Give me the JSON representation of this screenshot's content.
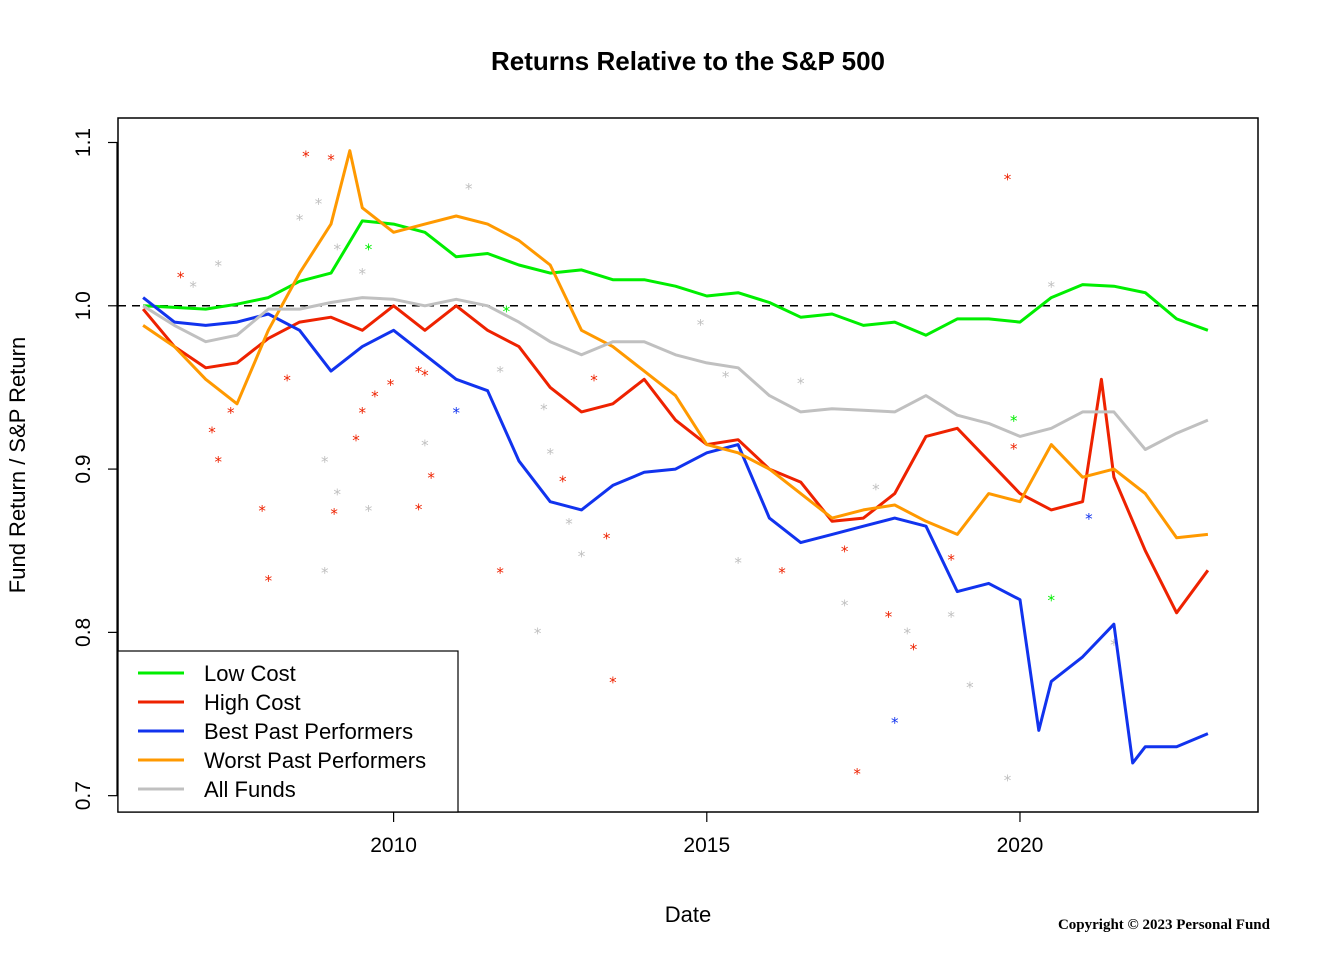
{
  "chart_data": {
    "type": "line",
    "title": "Returns Relative to the S&P 500",
    "xlabel": "Date",
    "ylabel": "Fund Return / S&P Return",
    "xlim": [
      2005.6,
      2023.8
    ],
    "ylim": [
      0.69,
      1.115
    ],
    "x_ticks": [
      {
        "value": 2010,
        "label": "2010"
      },
      {
        "value": 2015,
        "label": "2015"
      },
      {
        "value": 2020,
        "label": "2020"
      }
    ],
    "y_ticks": [
      {
        "value": 0.7,
        "label": "0.7"
      },
      {
        "value": 0.8,
        "label": "0.8"
      },
      {
        "value": 0.9,
        "label": "0.9"
      },
      {
        "value": 1.0,
        "label": "1.0"
      },
      {
        "value": 1.1,
        "label": "1.1"
      }
    ],
    "reference_line": {
      "y": 1.0,
      "style": "dashed"
    },
    "grid": false,
    "legend_position": "bottom-left",
    "series": [
      {
        "name": "Low Cost",
        "color": "#00ee00",
        "x": [
          2006.0,
          2006.5,
          2007.0,
          2007.5,
          2008.0,
          2008.5,
          2009.0,
          2009.5,
          2010.0,
          2010.5,
          2011.0,
          2011.5,
          2012.0,
          2012.5,
          2013.0,
          2013.5,
          2014.0,
          2014.5,
          2015.0,
          2015.5,
          2016.0,
          2016.5,
          2017.0,
          2017.5,
          2018.0,
          2018.5,
          2019.0,
          2019.5,
          2020.0,
          2020.5,
          2021.0,
          2021.5,
          2022.0,
          2022.5,
          2023.0
        ],
        "y": [
          1.0,
          0.999,
          0.998,
          1.001,
          1.005,
          1.015,
          1.02,
          1.052,
          1.05,
          1.045,
          1.03,
          1.032,
          1.025,
          1.02,
          1.022,
          1.016,
          1.016,
          1.012,
          1.006,
          1.008,
          1.002,
          0.993,
          0.995,
          0.988,
          0.99,
          0.982,
          0.992,
          0.992,
          0.99,
          1.005,
          1.013,
          1.012,
          1.008,
          0.992,
          0.985
        ]
      },
      {
        "name": "High Cost",
        "color": "#ee2200",
        "x": [
          2006.0,
          2006.5,
          2007.0,
          2007.5,
          2008.0,
          2008.5,
          2009.0,
          2009.5,
          2010.0,
          2010.5,
          2011.0,
          2011.5,
          2012.0,
          2012.5,
          2013.0,
          2013.5,
          2014.0,
          2014.5,
          2015.0,
          2015.5,
          2016.0,
          2016.5,
          2017.0,
          2017.5,
          2018.0,
          2018.5,
          2019.0,
          2019.5,
          2020.0,
          2020.5,
          2021.0,
          2021.3,
          2021.5,
          2022.0,
          2022.5,
          2023.0
        ],
        "y": [
          0.998,
          0.975,
          0.962,
          0.965,
          0.98,
          0.99,
          0.993,
          0.985,
          1.0,
          0.985,
          1.0,
          0.985,
          0.975,
          0.95,
          0.935,
          0.94,
          0.955,
          0.93,
          0.915,
          0.918,
          0.9,
          0.892,
          0.868,
          0.87,
          0.885,
          0.92,
          0.925,
          0.905,
          0.885,
          0.875,
          0.88,
          0.955,
          0.895,
          0.85,
          0.812,
          0.838
        ]
      },
      {
        "name": "Best Past Performers",
        "color": "#1133ee",
        "x": [
          2006.0,
          2006.5,
          2007.0,
          2007.5,
          2008.0,
          2008.5,
          2009.0,
          2009.5,
          2010.0,
          2010.5,
          2011.0,
          2011.5,
          2012.0,
          2012.5,
          2013.0,
          2013.5,
          2014.0,
          2014.5,
          2015.0,
          2015.5,
          2016.0,
          2016.5,
          2017.0,
          2017.5,
          2018.0,
          2018.5,
          2019.0,
          2019.5,
          2020.0,
          2020.3,
          2020.5,
          2021.0,
          2021.5,
          2021.8,
          2022.0,
          2022.5,
          2023.0
        ],
        "y": [
          1.005,
          0.99,
          0.988,
          0.99,
          0.995,
          0.985,
          0.96,
          0.975,
          0.985,
          0.97,
          0.955,
          0.948,
          0.905,
          0.88,
          0.875,
          0.89,
          0.898,
          0.9,
          0.91,
          0.915,
          0.87,
          0.855,
          0.86,
          0.865,
          0.87,
          0.865,
          0.825,
          0.83,
          0.82,
          0.74,
          0.77,
          0.785,
          0.805,
          0.72,
          0.73,
          0.73,
          0.738
        ]
      },
      {
        "name": "Worst Past Performers",
        "color": "#ff9900",
        "x": [
          2006.0,
          2006.5,
          2007.0,
          2007.5,
          2008.0,
          2008.5,
          2009.0,
          2009.3,
          2009.5,
          2010.0,
          2010.5,
          2011.0,
          2011.5,
          2012.0,
          2012.5,
          2013.0,
          2013.5,
          2014.0,
          2014.5,
          2015.0,
          2015.5,
          2016.0,
          2016.5,
          2017.0,
          2017.5,
          2018.0,
          2018.5,
          2019.0,
          2019.5,
          2020.0,
          2020.5,
          2021.0,
          2021.5,
          2022.0,
          2022.5,
          2023.0
        ],
        "y": [
          0.988,
          0.975,
          0.955,
          0.94,
          0.985,
          1.02,
          1.05,
          1.095,
          1.06,
          1.045,
          1.05,
          1.055,
          1.05,
          1.04,
          1.025,
          0.985,
          0.975,
          0.96,
          0.945,
          0.915,
          0.91,
          0.9,
          0.885,
          0.87,
          0.875,
          0.878,
          0.868,
          0.86,
          0.885,
          0.88,
          0.915,
          0.895,
          0.9,
          0.885,
          0.858,
          0.86
        ]
      },
      {
        "name": "All Funds",
        "color": "#c0c0c0",
        "x": [
          2006.0,
          2006.5,
          2007.0,
          2007.5,
          2008.0,
          2008.5,
          2009.0,
          2009.5,
          2010.0,
          2010.5,
          2011.0,
          2011.5,
          2012.0,
          2012.5,
          2013.0,
          2013.5,
          2014.0,
          2014.5,
          2015.0,
          2015.5,
          2016.0,
          2016.5,
          2017.0,
          2017.5,
          2018.0,
          2018.5,
          2019.0,
          2019.5,
          2020.0,
          2020.5,
          2021.0,
          2021.5,
          2022.0,
          2022.5,
          2023.0
        ],
        "y": [
          1.0,
          0.988,
          0.978,
          0.982,
          0.998,
          0.998,
          1.002,
          1.005,
          1.004,
          1.0,
          1.004,
          1.0,
          0.99,
          0.978,
          0.97,
          0.978,
          0.978,
          0.97,
          0.965,
          0.962,
          0.945,
          0.935,
          0.937,
          0.936,
          0.935,
          0.945,
          0.933,
          0.928,
          0.92,
          0.925,
          0.935,
          0.935,
          0.912,
          0.922,
          0.93
        ]
      }
    ],
    "scatter_points": [
      {
        "series": "High Cost",
        "x": [
          2008.6,
          2009.0,
          2008.3,
          2006.6,
          2007.9,
          2007.4,
          2007.1,
          2007.2,
          2008.0,
          2009.5,
          2009.7,
          2009.95,
          2010.4,
          2010.6,
          2010.4,
          2010.5,
          2009.05,
          2009.4,
          2011.7,
          2012.7,
          2013.5,
          2013.4,
          2013.2,
          2017.4,
          2017.9,
          2018.3,
          2019.8,
          2016.2,
          2017.2,
          2018.9,
          2019.9
        ],
        "y": [
          1.092,
          1.09,
          0.955,
          1.018,
          0.875,
          0.935,
          0.923,
          0.905,
          0.832,
          0.935,
          0.945,
          0.952,
          0.96,
          0.895,
          0.876,
          0.958,
          0.873,
          0.918,
          0.837,
          0.893,
          0.77,
          0.858,
          0.955,
          0.714,
          0.81,
          0.79,
          1.078,
          0.837,
          0.85,
          0.845,
          0.913
        ]
      },
      {
        "series": "Best Past Performers",
        "x": [
          2011.0,
          2018.0,
          2021.1
        ],
        "y": [
          0.935,
          0.745,
          0.87
        ]
      },
      {
        "series": "Low Cost",
        "x": [
          2009.6,
          2011.8,
          2019.9,
          2020.5
        ],
        "y": [
          1.035,
          0.997,
          0.93,
          0.82
        ]
      },
      {
        "series": "All Funds",
        "x": [
          2008.8,
          2009.1,
          2008.5,
          2007.2,
          2006.8,
          2009.5,
          2011.2,
          2011.7,
          2012.3,
          2012.5,
          2012.8,
          2013.0,
          2008.9,
          2009.1,
          2009.6,
          2010.5,
          2012.4,
          2014.9,
          2015.3,
          2015.5,
          2016.5,
          2017.2,
          2017.7,
          2018.2,
          2018.9,
          2019.2,
          2019.8,
          2020.5,
          2021.5,
          2008.9
        ],
        "y": [
          1.063,
          1.035,
          1.053,
          1.025,
          1.012,
          1.02,
          1.072,
          0.96,
          0.8,
          0.91,
          0.867,
          0.847,
          0.905,
          0.885,
          0.875,
          0.915,
          0.937,
          0.989,
          0.957,
          0.843,
          0.953,
          0.817,
          0.888,
          0.8,
          0.81,
          0.767,
          0.71,
          1.012,
          0.793,
          0.837
        ]
      }
    ]
  },
  "copyright": "Copyright © 2023 Personal Fund"
}
